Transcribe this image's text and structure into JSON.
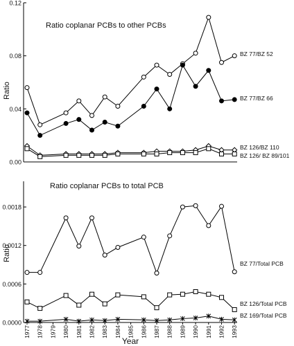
{
  "chart_data": [
    {
      "type": "line",
      "title": "Ratio coplanar PCBs to other PCBs",
      "ylabel": "Ratio",
      "ylim": [
        0,
        0.12
      ],
      "yticks": [
        0.0,
        0.04,
        0.08,
        0.12
      ],
      "ytick_labels": [
        "0.00",
        "0.04",
        "0.08",
        "0.12"
      ],
      "x": [
        1977,
        1978,
        1980,
        1981,
        1982,
        1983,
        1984,
        1986,
        1987,
        1988,
        1989,
        1990,
        1991,
        1992,
        1993
      ],
      "series": [
        {
          "name": "BZ 77/BZ 52",
          "marker": "open-circle",
          "values": [
            0.056,
            0.028,
            0.037,
            0.046,
            0.035,
            0.049,
            0.042,
            0.064,
            0.073,
            0.066,
            0.074,
            0.082,
            0.109,
            0.075,
            0.08
          ]
        },
        {
          "name": "BZ 77/BZ 66",
          "marker": "filled-circle",
          "values": [
            0.037,
            0.02,
            0.029,
            0.032,
            0.024,
            0.03,
            0.027,
            0.042,
            0.055,
            0.04,
            0.073,
            0.057,
            0.069,
            0.046,
            0.047
          ]
        },
        {
          "name": "BZ 126/BZ 110",
          "marker": "open-diamond",
          "values": [
            0.012,
            0.005,
            0.006,
            0.006,
            0.006,
            0.006,
            0.007,
            0.007,
            0.008,
            0.008,
            0.008,
            0.009,
            0.012,
            0.009,
            0.009
          ]
        },
        {
          "name": "BZ 126/  BZ 89/101",
          "marker": "open-square",
          "values": [
            0.01,
            0.004,
            0.005,
            0.005,
            0.005,
            0.005,
            0.006,
            0.006,
            0.006,
            0.007,
            0.007,
            0.007,
            0.01,
            0.006,
            0.006
          ]
        }
      ]
    },
    {
      "type": "line",
      "title": "Ratio coplanar PCBs to total PCB",
      "ylabel": "Ratio",
      "xlabel": "Year",
      "ylim": [
        0,
        0.0022
      ],
      "yticks": [
        0.0,
        0.0006,
        0.0012,
        0.0018
      ],
      "ytick_labels": [
        "0.0000",
        "0.0006",
        "0.0012",
        "0.0018"
      ],
      "x": [
        1977,
        1978,
        1980,
        1981,
        1982,
        1983,
        1984,
        1986,
        1987,
        1988,
        1989,
        1990,
        1991,
        1992,
        1993
      ],
      "series": [
        {
          "name": "BZ 77/Total PCB",
          "marker": "open-circle",
          "values": [
            0.00078,
            0.00078,
            0.00163,
            0.00119,
            0.00163,
            0.00105,
            0.00117,
            0.00133,
            0.00077,
            0.00135,
            0.0018,
            0.00182,
            0.00151,
            0.00181,
            0.00079
          ]
        },
        {
          "name": "BZ 126/Total PCB",
          "marker": "open-square",
          "values": [
            0.00032,
            0.00022,
            0.00042,
            0.00027,
            0.00044,
            0.00029,
            0.00043,
            0.0004,
            0.00023,
            0.00043,
            0.00044,
            0.00048,
            0.00044,
            0.00039,
            0.0002
          ]
        },
        {
          "name": "BZ 169/Total PCB",
          "marker": "star",
          "values": [
            2e-05,
            2e-05,
            5e-05,
            2e-05,
            4e-05,
            3e-05,
            5e-05,
            4e-05,
            3e-05,
            4e-05,
            6e-05,
            7e-05,
            0.0001,
            5e-05,
            4e-05
          ]
        }
      ]
    }
  ],
  "x_axis": {
    "tick_labels": [
      "1977",
      "1978",
      "1979",
      "1980",
      "1981",
      "1982",
      "1983",
      "1984",
      "1985",
      "1986",
      "1987",
      "1988",
      "1989",
      "1990",
      "1991",
      "1992",
      "1993"
    ]
  }
}
